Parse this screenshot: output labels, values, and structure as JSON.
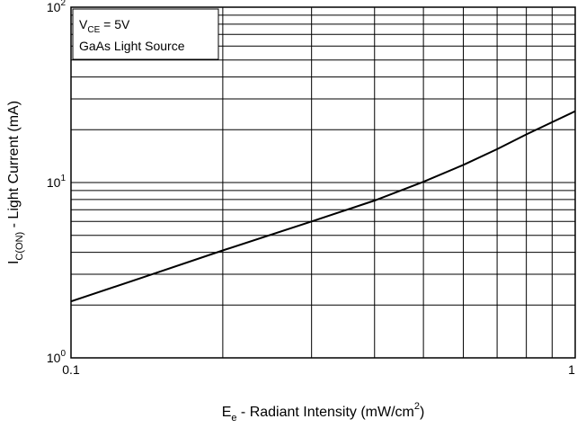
{
  "chart_data": {
    "type": "line",
    "title": "",
    "xscale": "log",
    "yscale": "log",
    "xlim": [
      0.1,
      1
    ],
    "ylim": [
      1,
      100
    ],
    "grid": true,
    "xlabel": {
      "main": "E",
      "sub": "e",
      "rest": " - Radiant Intensity (mW/cm",
      "sup": "2",
      "end": ")"
    },
    "ylabel": {
      "main": "I",
      "sub": "C(ON)",
      "rest": " - Light Current (mA)"
    },
    "x_ticks": [
      "0.1",
      "1"
    ],
    "y_ticks": [
      {
        "base": "10",
        "exp": "0",
        "value": 1
      },
      {
        "base": "10",
        "exp": "1",
        "value": 10
      },
      {
        "base": "10",
        "exp": "2",
        "value": 100
      }
    ],
    "legend": {
      "position": "top-left",
      "line1": {
        "main": "V",
        "sub": "CE",
        "rest": " = 5V"
      },
      "line2": "GaAs Light Source"
    },
    "series": [
      {
        "x": [
          0.1,
          0.14,
          0.2,
          0.3,
          0.4,
          0.5,
          0.6,
          0.7,
          0.8,
          1.0
        ],
        "y": [
          2.1,
          2.9,
          4.1,
          6.0,
          7.9,
          10.1,
          12.6,
          15.5,
          18.8,
          25.5
        ]
      }
    ]
  }
}
